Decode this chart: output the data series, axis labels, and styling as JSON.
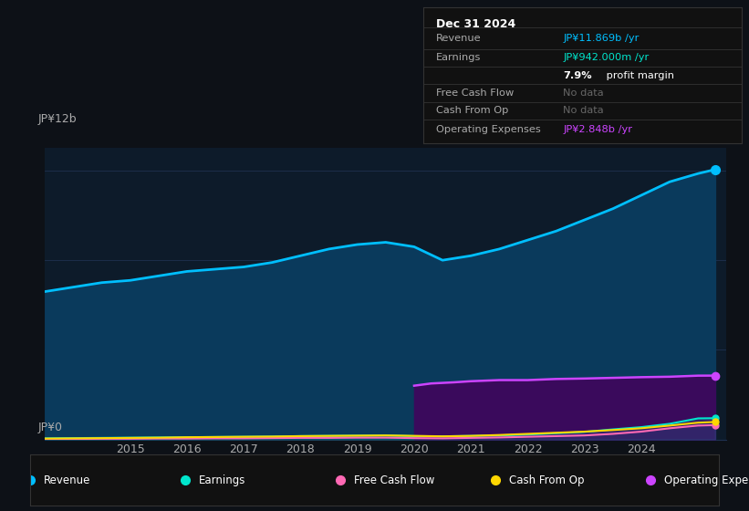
{
  "bg_color": "#0d1117",
  "plot_bg_color": "#0d1b2a",
  "ylabel_top": "JP¥12b",
  "ylabel_bottom": "JP¥0",
  "grid_color": "#1e3050",
  "ylim": [
    0,
    13
  ],
  "xlim": [
    2013.5,
    2025.5
  ],
  "revenue_color": "#00bfff",
  "earnings_color": "#00e5cc",
  "fcf_color": "#ff69b4",
  "cashfromop_color": "#ffd700",
  "opex_color": "#cc44ff",
  "revenue_fill_color": "#0a3a5c",
  "opex_fill_color": "#3a0a5c",
  "info_box": {
    "title": "Dec 31 2024",
    "rows": [
      {
        "label": "Revenue",
        "value": "JP¥11.869b /yr",
        "value_color": "#00bfff",
        "bold_part": ""
      },
      {
        "label": "Earnings",
        "value": "JP¥942.000m /yr",
        "value_color": "#00e5cc",
        "bold_part": ""
      },
      {
        "label": "",
        "value": "7.9% profit margin",
        "value_color": "#ffffff",
        "bold_part": "7.9%"
      },
      {
        "label": "Free Cash Flow",
        "value": "No data",
        "value_color": "#666666",
        "bold_part": ""
      },
      {
        "label": "Cash From Op",
        "value": "No data",
        "value_color": "#666666",
        "bold_part": ""
      },
      {
        "label": "Operating Expenses",
        "value": "JP¥2.848b /yr",
        "value_color": "#cc44ff",
        "bold_part": ""
      }
    ]
  },
  "legend_items": [
    {
      "label": "Revenue",
      "color": "#00bfff"
    },
    {
      "label": "Earnings",
      "color": "#00e5cc"
    },
    {
      "label": "Free Cash Flow",
      "color": "#ff69b4"
    },
    {
      "label": "Cash From Op",
      "color": "#ffd700"
    },
    {
      "label": "Operating Expenses",
      "color": "#cc44ff"
    }
  ],
  "revenue_x": [
    2013.5,
    2014.0,
    2014.5,
    2015.0,
    2015.5,
    2016.0,
    2016.5,
    2017.0,
    2017.5,
    2018.0,
    2018.5,
    2019.0,
    2019.5,
    2020.0,
    2020.5,
    2021.0,
    2021.5,
    2022.0,
    2022.5,
    2023.0,
    2023.5,
    2024.0,
    2024.5,
    2025.0,
    2025.3
  ],
  "revenue_y": [
    6.6,
    6.8,
    7.0,
    7.1,
    7.3,
    7.5,
    7.6,
    7.7,
    7.9,
    8.2,
    8.5,
    8.7,
    8.8,
    8.6,
    8.0,
    8.2,
    8.5,
    8.9,
    9.3,
    9.8,
    10.3,
    10.9,
    11.5,
    11.869,
    12.05
  ],
  "earnings_x": [
    2013.5,
    2014.0,
    2014.5,
    2015.0,
    2015.5,
    2016.0,
    2016.5,
    2017.0,
    2017.5,
    2018.0,
    2018.5,
    2019.0,
    2019.5,
    2020.0,
    2020.5,
    2021.0,
    2021.5,
    2022.0,
    2022.5,
    2023.0,
    2023.5,
    2024.0,
    2024.5,
    2025.0,
    2025.3
  ],
  "earnings_y": [
    0.05,
    0.06,
    0.07,
    0.08,
    0.09,
    0.1,
    0.11,
    0.12,
    0.13,
    0.15,
    0.16,
    0.17,
    0.18,
    0.15,
    0.14,
    0.16,
    0.18,
    0.22,
    0.28,
    0.34,
    0.45,
    0.55,
    0.7,
    0.942,
    0.95
  ],
  "fcf_x": [
    2013.5,
    2014.0,
    2014.5,
    2015.0,
    2015.5,
    2016.0,
    2016.5,
    2017.0,
    2017.5,
    2018.0,
    2018.5,
    2019.0,
    2019.5,
    2020.0,
    2020.5,
    2021.0,
    2021.5,
    2022.0,
    2022.5,
    2023.0,
    2023.5,
    2024.0,
    2024.5,
    2025.0,
    2025.3
  ],
  "fcf_y": [
    0.02,
    0.02,
    0.03,
    0.03,
    0.04,
    0.04,
    0.05,
    0.05,
    0.06,
    0.07,
    0.07,
    0.08,
    0.08,
    0.06,
    0.05,
    0.07,
    0.09,
    0.12,
    0.15,
    0.18,
    0.25,
    0.35,
    0.5,
    0.62,
    0.64
  ],
  "cashfromop_x": [
    2013.5,
    2014.0,
    2014.5,
    2015.0,
    2015.5,
    2016.0,
    2016.5,
    2017.0,
    2017.5,
    2018.0,
    2018.5,
    2019.0,
    2019.5,
    2020.0,
    2020.5,
    2021.0,
    2021.5,
    2022.0,
    2022.5,
    2023.0,
    2023.5,
    2024.0,
    2024.5,
    2025.0,
    2025.3
  ],
  "cashfromop_y": [
    0.04,
    0.05,
    0.06,
    0.07,
    0.08,
    0.1,
    0.11,
    0.12,
    0.13,
    0.15,
    0.16,
    0.17,
    0.18,
    0.16,
    0.14,
    0.16,
    0.2,
    0.25,
    0.3,
    0.35,
    0.42,
    0.5,
    0.62,
    0.75,
    0.78
  ],
  "opex_x": [
    2020.0,
    2020.3,
    2020.7,
    2021.0,
    2021.5,
    2022.0,
    2022.5,
    2023.0,
    2023.5,
    2024.0,
    2024.5,
    2025.0,
    2025.3
  ],
  "opex_y": [
    2.4,
    2.5,
    2.55,
    2.6,
    2.65,
    2.65,
    2.7,
    2.72,
    2.75,
    2.78,
    2.8,
    2.848,
    2.85
  ]
}
